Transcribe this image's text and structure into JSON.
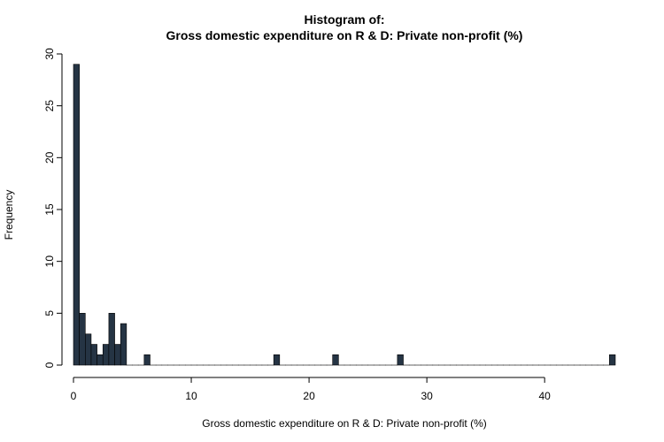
{
  "chart_data": {
    "type": "bar",
    "title_line1": "Histogram of:",
    "title_line2": "Gross domestic expenditure on R & D: Private non-profit (%)",
    "xlabel": "Gross domestic expenditure on R & D: Private non-profit (%)",
    "ylabel": "Frequency",
    "xlim": [
      0,
      46
    ],
    "ylim": [
      0,
      30
    ],
    "x_ticks": [
      0,
      10,
      20,
      30,
      40
    ],
    "y_ticks": [
      0,
      5,
      10,
      15,
      20,
      25,
      30
    ],
    "bin_width": 0.5,
    "bar_color": "#253444",
    "bins": [
      {
        "x0": 0.0,
        "count": 29
      },
      {
        "x0": 0.5,
        "count": 5
      },
      {
        "x0": 1.0,
        "count": 3
      },
      {
        "x0": 1.5,
        "count": 2
      },
      {
        "x0": 2.0,
        "count": 1
      },
      {
        "x0": 2.5,
        "count": 2
      },
      {
        "x0": 3.0,
        "count": 5
      },
      {
        "x0": 3.5,
        "count": 2
      },
      {
        "x0": 4.0,
        "count": 4
      },
      {
        "x0": 6.0,
        "count": 1
      },
      {
        "x0": 17.0,
        "count": 1
      },
      {
        "x0": 22.0,
        "count": 1
      },
      {
        "x0": 27.5,
        "count": 1
      },
      {
        "x0": 45.5,
        "count": 1
      }
    ]
  }
}
